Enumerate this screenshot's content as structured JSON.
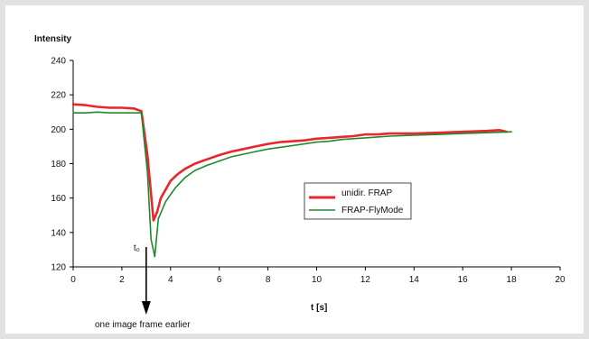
{
  "chart_data": {
    "type": "line",
    "ylabel": "Intensity",
    "xlabel": "t [s]",
    "xlim": [
      0,
      20
    ],
    "ylim": [
      120,
      240
    ],
    "x_ticks": [
      0,
      2,
      4,
      6,
      8,
      10,
      12,
      14,
      16,
      18,
      20
    ],
    "y_ticks": [
      120,
      140,
      160,
      180,
      200,
      220,
      240
    ],
    "grid": false,
    "legend_position": "center-right",
    "series": [
      {
        "name": "unidir. FRAP",
        "color": "#e8262b",
        "points": [
          [
            0,
            214.5
          ],
          [
            0.5,
            214
          ],
          [
            1,
            213
          ],
          [
            1.5,
            212.5
          ],
          [
            2,
            212.5
          ],
          [
            2.5,
            212
          ],
          [
            2.8,
            210.5
          ],
          [
            3.05,
            185
          ],
          [
            3.3,
            147
          ],
          [
            3.45,
            152
          ],
          [
            3.6,
            160
          ],
          [
            4,
            170
          ],
          [
            4.3,
            174
          ],
          [
            4.6,
            177
          ],
          [
            5,
            180
          ],
          [
            5.5,
            182.5
          ],
          [
            6,
            185
          ],
          [
            6.5,
            187
          ],
          [
            7,
            188.5
          ],
          [
            7.5,
            190
          ],
          [
            8,
            191.5
          ],
          [
            8.5,
            192.5
          ],
          [
            9,
            193
          ],
          [
            9.5,
            193.5
          ],
          [
            10,
            194.5
          ],
          [
            10.5,
            195
          ],
          [
            11,
            195.5
          ],
          [
            11.5,
            196
          ],
          [
            12,
            197
          ],
          [
            12.5,
            197
          ],
          [
            13,
            197.5
          ],
          [
            14,
            197.5
          ],
          [
            15,
            198
          ],
          [
            16,
            198.5
          ],
          [
            17,
            199
          ],
          [
            17.5,
            199.5
          ],
          [
            17.8,
            198.5
          ]
        ]
      },
      {
        "name": "FRAP-FlyMode",
        "color": "#1e8a2d",
        "points": [
          [
            0,
            209.5
          ],
          [
            0.5,
            209.5
          ],
          [
            1,
            210
          ],
          [
            1.5,
            209.5
          ],
          [
            2,
            209.5
          ],
          [
            2.5,
            209.5
          ],
          [
            2.8,
            209.5
          ],
          [
            3.05,
            175
          ],
          [
            3.2,
            136
          ],
          [
            3.35,
            126
          ],
          [
            3.5,
            148
          ],
          [
            3.8,
            158
          ],
          [
            4.2,
            166
          ],
          [
            4.6,
            172
          ],
          [
            5,
            176
          ],
          [
            5.5,
            179
          ],
          [
            6,
            181.5
          ],
          [
            6.5,
            184
          ],
          [
            7,
            185.5
          ],
          [
            7.5,
            187
          ],
          [
            8,
            188.5
          ],
          [
            8.5,
            189.5
          ],
          [
            9,
            190.5
          ],
          [
            9.5,
            191.5
          ],
          [
            10,
            192.5
          ],
          [
            10.5,
            193
          ],
          [
            11,
            194
          ],
          [
            11.5,
            194.5
          ],
          [
            12,
            195
          ],
          [
            12.5,
            195.5
          ],
          [
            13,
            196
          ],
          [
            14,
            196.5
          ],
          [
            15,
            197
          ],
          [
            16,
            197.5
          ],
          [
            17,
            198
          ],
          [
            18,
            198.5
          ]
        ]
      }
    ],
    "annotations": {
      "t0_label": "t₀",
      "arrow_label": "one image frame earlier"
    }
  }
}
